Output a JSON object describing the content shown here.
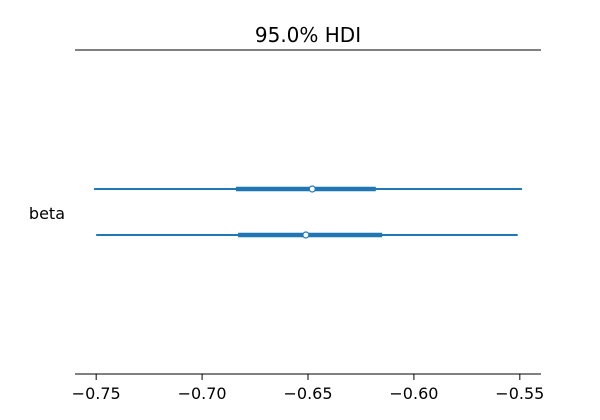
{
  "chart_data": {
    "type": "forest",
    "title": "95.0% HDI",
    "variable_label": "beta",
    "xlim": [
      -0.76,
      -0.54
    ],
    "xticks": [
      -0.75,
      -0.7,
      -0.65,
      -0.6,
      -0.55
    ],
    "xtick_labels": [
      "−0.75",
      "−0.70",
      "−0.65",
      "−0.60",
      "−0.55"
    ],
    "grid": false,
    "series": [
      {
        "hdi_low": -0.751,
        "hdi_high": -0.549,
        "iqr_low": -0.684,
        "iqr_high": -0.618,
        "point": -0.648
      },
      {
        "hdi_low": -0.75,
        "hdi_high": -0.551,
        "iqr_low": -0.683,
        "iqr_high": -0.615,
        "point": -0.651
      }
    ],
    "line_color": "#1f77b4",
    "marker_face": "#ffffff"
  }
}
